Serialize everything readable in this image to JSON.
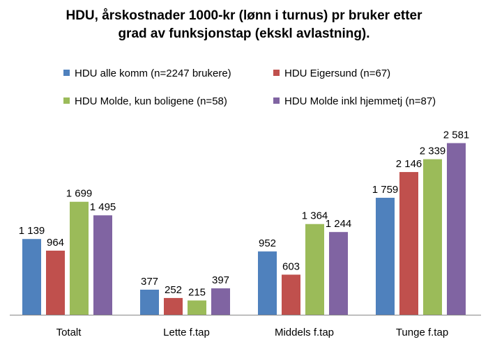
{
  "chart_data": {
    "type": "bar",
    "title": [
      "HDU, årskostnader 1000-kr (lønn i turnus) pr bruker etter",
      "grad av funksjonstap (ekskl avlastning)."
    ],
    "xlabel": "",
    "ylabel": "",
    "categories": [
      "Totalt",
      "Lette f.tap",
      "Middels f.tap",
      "Tunge f.tap"
    ],
    "series": [
      {
        "name": "HDU alle komm (n=2247 brukere)",
        "color": "#4f81bd",
        "values": [
          1139,
          377,
          952,
          1759
        ],
        "labels": [
          "1 139",
          "377",
          "952",
          "1 759"
        ]
      },
      {
        "name": "HDU Eigersund (n=67)",
        "color": "#c0504d",
        "values": [
          964,
          252,
          603,
          2146
        ],
        "labels": [
          "964",
          "252",
          "603",
          "2 146"
        ]
      },
      {
        "name": "HDU Molde, kun boligene (n=58)",
        "color": "#9bbb59",
        "values": [
          1699,
          215,
          1364,
          2339
        ],
        "labels": [
          "1 699",
          "215",
          "1 364",
          "2 339"
        ]
      },
      {
        "name": "HDU Molde inkl hjemmetj (n=87)",
        "color": "#8064a2",
        "values": [
          1495,
          397,
          1244,
          2581
        ],
        "labels": [
          "1 495",
          "397",
          "1 244",
          "2 581"
        ]
      }
    ],
    "ylim": [
      0,
      2800
    ],
    "grid": false,
    "legend_position": "top"
  }
}
